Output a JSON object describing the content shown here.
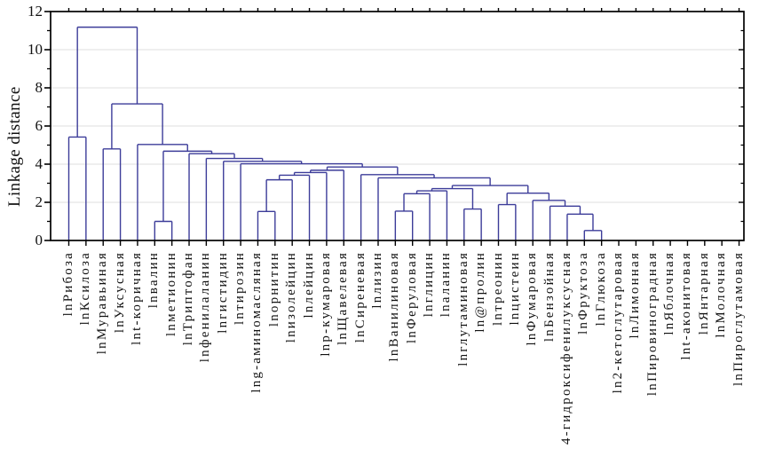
{
  "figure": {
    "background": "#ffffff",
    "line_color": "#3c3c99",
    "axis_color": "#000000",
    "grid_color": "#dfdfdf",
    "text_color": "#111111"
  },
  "chart_data": {
    "type": "dendrogram",
    "title": "",
    "ylabel": "Linkage distance",
    "xlabel": "",
    "ylim": [
      0,
      12
    ],
    "yticks": [
      0,
      2,
      4,
      6,
      8,
      10,
      12
    ],
    "yticks_minor": [
      1,
      3,
      5,
      7,
      9,
      11
    ],
    "grid": "horizontal light gridlines at even values",
    "legend": "none",
    "leaves": [
      "lnРибоза",
      "lnКсилоза",
      "lnМуравьиная",
      "lnУксусная",
      "lnt-коричная",
      "lnвалин",
      "lnметионин",
      "lnТриптофан",
      "lnфенилаланин",
      "lnгистидин",
      "lnтирозин",
      "lng-аминомасляная",
      "lnорнитин",
      "lnизолейцин",
      "lnлейцин",
      "lnp-кумаровая",
      "lnЩавелевая",
      "lnСиреневая",
      "lnлизин",
      "lnВанилиновая",
      "lnФеруловая",
      "lnглицин",
      "lnаланин",
      "lnглутаминовая",
      "ln@пролин",
      "lnтреонин",
      "lnцистеин",
      "lnФумаровая",
      "lnБензойная",
      "4-гидроксифенилуксусная",
      "lnФруктоза",
      "lnГлюкоза",
      "ln2-кетоглутаровая",
      "lnЛимонная",
      "lnПировиноградная",
      "lnЯблочная",
      "lnt-аконитовая",
      "lnЯнтарная",
      "lnМолочная",
      "lnПироглутамовая"
    ],
    "merges": [
      [
        "L6",
        "L7",
        1.0
      ],
      [
        "L12",
        "L13",
        1.52
      ],
      [
        "L20",
        "L21",
        1.54
      ],
      [
        "L24",
        "L25",
        1.65
      ],
      [
        "L26",
        "L27",
        1.88
      ],
      [
        "L31",
        "L32",
        0.52
      ],
      [
        "L30",
        "M6",
        1.38
      ],
      [
        "L29",
        "M7",
        1.8
      ],
      [
        "L28",
        "M8",
        2.1
      ],
      [
        "M5",
        "M9",
        2.48
      ],
      [
        "M3",
        "L22",
        2.45
      ],
      [
        "M11",
        "L23",
        2.6
      ],
      [
        "M12",
        "M4",
        2.72
      ],
      [
        "M13",
        "M10",
        2.88
      ],
      [
        "L19",
        "M14",
        3.28
      ],
      [
        "L18",
        "M15",
        3.45
      ],
      [
        "M2",
        "L14",
        3.18
      ],
      [
        "M17",
        "L15",
        3.42
      ],
      [
        "M18",
        "L16",
        3.56
      ],
      [
        "M19",
        "L17",
        3.68
      ],
      [
        "M20",
        "M16",
        3.85
      ],
      [
        "L11",
        "M21",
        4.02
      ],
      [
        "L10",
        "M22",
        4.15
      ],
      [
        "L9",
        "M23",
        4.3
      ],
      [
        "L8",
        "M24",
        4.55
      ],
      [
        "M1",
        "M25",
        4.68
      ],
      [
        "L5",
        "M26",
        5.03
      ],
      [
        "L3",
        "L4",
        4.8
      ],
      [
        "M28",
        "M27",
        7.16
      ],
      [
        "L1",
        "L2",
        5.42
      ],
      [
        "M30",
        "M29",
        11.18
      ]
    ],
    "note": "Leaves 33-40 (ln2-кетоглутаровая … lnПироглутамовая) show no linkage lines inside the visible plot area; they only have axis tick marks and labels."
  }
}
